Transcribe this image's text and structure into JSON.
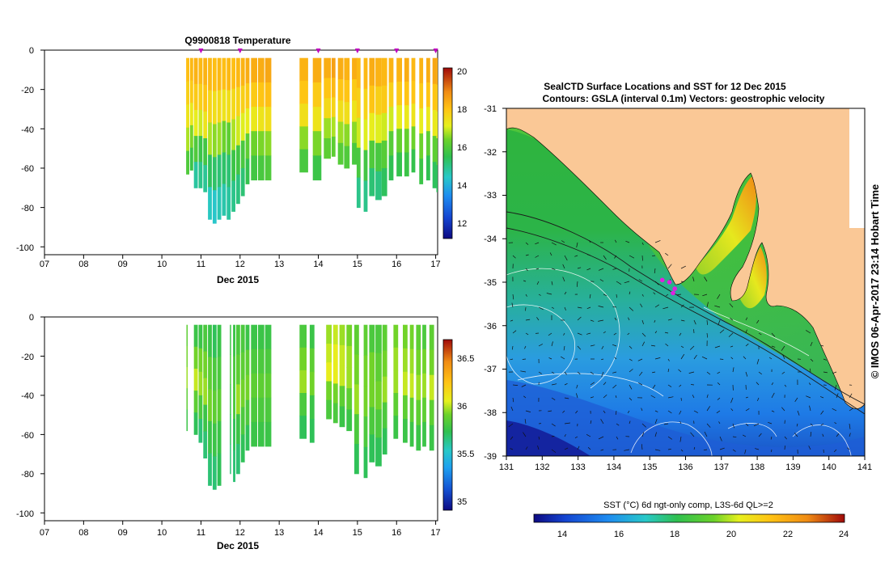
{
  "chart_data": [
    {
      "type": "heatmap",
      "title": "Q9900818  Temperature",
      "xlabel": "Dec 2015",
      "ylabel": "",
      "xlim": [
        7,
        17.05
      ],
      "ylim": [
        -104,
        0
      ],
      "x_ticks": [
        "07",
        "08",
        "09",
        "10",
        "11",
        "12",
        "13",
        "14",
        "15",
        "16",
        "17"
      ],
      "y_ticks": [
        "0",
        "-20",
        "-40",
        "-60",
        "-80",
        "-100"
      ],
      "profile_markers_day": [
        11.0,
        12.0,
        14.0,
        15.0,
        16.0,
        17.0
      ],
      "colorbar": {
        "min": 11,
        "max": 20,
        "ticks": [
          "12",
          "14",
          "16",
          "18",
          "20"
        ]
      },
      "profiles": [
        {
          "day": 10.62,
          "w": 0.08,
          "depth": 63,
          "vals": [
            17.9,
            17.6,
            17.2,
            16.6,
            15.8
          ]
        },
        {
          "day": 10.72,
          "w": 0.08,
          "depth": 61,
          "vals": [
            18.0,
            17.7,
            17.1,
            16.3,
            15.5
          ]
        },
        {
          "day": 10.82,
          "w": 0.1,
          "depth": 70,
          "vals": [
            18.1,
            17.7,
            17.0,
            15.8,
            14.6
          ]
        },
        {
          "day": 10.94,
          "w": 0.1,
          "depth": 70,
          "vals": [
            18.0,
            17.6,
            16.8,
            15.5,
            14.8
          ]
        },
        {
          "day": 11.06,
          "w": 0.1,
          "depth": 72,
          "vals": [
            18.1,
            17.8,
            17.2,
            15.6,
            14.7
          ]
        },
        {
          "day": 11.18,
          "w": 0.1,
          "depth": 86,
          "vals": [
            18.0,
            17.5,
            16.6,
            15.2,
            14.3
          ]
        },
        {
          "day": 11.3,
          "w": 0.1,
          "depth": 88,
          "vals": [
            17.9,
            17.3,
            16.4,
            15.1,
            14.2
          ]
        },
        {
          "day": 11.42,
          "w": 0.1,
          "depth": 86,
          "vals": [
            18.0,
            17.4,
            16.5,
            15.0,
            14.4
          ]
        },
        {
          "day": 11.54,
          "w": 0.1,
          "depth": 84,
          "vals": [
            17.9,
            17.2,
            16.2,
            15.1,
            14.5
          ]
        },
        {
          "day": 11.66,
          "w": 0.1,
          "depth": 86,
          "vals": [
            18.0,
            17.3,
            16.0,
            15.0,
            14.6
          ]
        },
        {
          "day": 11.78,
          "w": 0.1,
          "depth": 82,
          "vals": [
            17.9,
            17.4,
            16.6,
            15.5,
            14.8
          ]
        },
        {
          "day": 11.9,
          "w": 0.1,
          "depth": 78,
          "vals": [
            18.0,
            17.5,
            16.8,
            15.6,
            14.9
          ]
        },
        {
          "day": 12.02,
          "w": 0.1,
          "depth": 74,
          "vals": [
            18.1,
            17.6,
            16.9,
            15.7,
            15.0
          ]
        },
        {
          "day": 12.14,
          "w": 0.1,
          "depth": 68,
          "vals": [
            18.2,
            17.7,
            17.0,
            16.0,
            15.4
          ]
        },
        {
          "day": 12.28,
          "w": 0.16,
          "depth": 66,
          "vals": [
            18.2,
            17.7,
            17.1,
            16.2,
            15.6
          ]
        },
        {
          "day": 12.46,
          "w": 0.16,
          "depth": 66,
          "vals": [
            18.2,
            17.8,
            17.2,
            16.3,
            15.7
          ]
        },
        {
          "day": 12.64,
          "w": 0.16,
          "depth": 66,
          "vals": [
            18.3,
            17.9,
            17.3,
            16.4,
            15.8
          ]
        },
        {
          "day": 13.52,
          "w": 0.22,
          "depth": 62,
          "vals": [
            18.1,
            17.8,
            17.3,
            16.4,
            15.7
          ]
        },
        {
          "day": 13.86,
          "w": 0.22,
          "depth": 66,
          "vals": [
            18.2,
            17.7,
            17.2,
            16.3,
            15.5
          ]
        },
        {
          "day": 14.14,
          "w": 0.18,
          "depth": 55,
          "vals": [
            18.2,
            17.8,
            17.4,
            16.5,
            16.0
          ]
        },
        {
          "day": 14.34,
          "w": 0.1,
          "depth": 54,
          "vals": [
            18.4,
            18.0,
            17.5,
            16.6,
            16.0
          ]
        },
        {
          "day": 14.5,
          "w": 0.14,
          "depth": 58,
          "vals": [
            18.2,
            17.8,
            17.3,
            16.5,
            15.9
          ]
        },
        {
          "day": 14.66,
          "w": 0.14,
          "depth": 60,
          "vals": [
            18.1,
            17.8,
            17.3,
            16.4,
            15.8
          ]
        },
        {
          "day": 14.86,
          "w": 0.14,
          "depth": 58,
          "vals": [
            18.2,
            17.7,
            17.2,
            16.4,
            15.7
          ]
        },
        {
          "day": 14.98,
          "w": 0.1,
          "depth": 80,
          "vals": [
            18.0,
            17.6,
            16.8,
            15.7,
            14.8
          ]
        },
        {
          "day": 15.16,
          "w": 0.1,
          "depth": 82,
          "vals": [
            18.0,
            17.5,
            16.9,
            15.6,
            14.8
          ]
        },
        {
          "day": 15.3,
          "w": 0.14,
          "depth": 74,
          "vals": [
            18.2,
            17.8,
            17.0,
            15.8,
            15.0
          ]
        },
        {
          "day": 15.46,
          "w": 0.16,
          "depth": 76,
          "vals": [
            18.1,
            17.6,
            16.9,
            15.7,
            14.9
          ]
        },
        {
          "day": 15.62,
          "w": 0.14,
          "depth": 74,
          "vals": [
            18.0,
            17.7,
            16.8,
            15.9,
            15.2
          ]
        },
        {
          "day": 15.8,
          "w": 0.12,
          "depth": 66,
          "vals": [
            18.1,
            17.6,
            16.8,
            15.9,
            15.3
          ]
        },
        {
          "day": 16.0,
          "w": 0.14,
          "depth": 64,
          "vals": [
            18.1,
            17.7,
            17.0,
            16.1,
            15.4
          ]
        },
        {
          "day": 16.2,
          "w": 0.12,
          "depth": 64,
          "vals": [
            18.2,
            17.8,
            17.1,
            16.1,
            15.5
          ]
        },
        {
          "day": 16.38,
          "w": 0.1,
          "depth": 62,
          "vals": [
            18.0,
            17.8,
            17.2,
            16.2,
            15.4
          ]
        },
        {
          "day": 16.58,
          "w": 0.1,
          "depth": 68,
          "vals": [
            18.1,
            17.7,
            17.0,
            16.2,
            15.5
          ]
        },
        {
          "day": 16.76,
          "w": 0.1,
          "depth": 66,
          "vals": [
            18.2,
            17.8,
            17.1,
            16.0,
            15.3
          ]
        },
        {
          "day": 16.92,
          "w": 0.12,
          "depth": 70,
          "vals": [
            18.3,
            17.8,
            17.1,
            16.0,
            15.2
          ]
        },
        {
          "day": 17.02,
          "w": 0.03,
          "depth": 72,
          "vals": [
            18.2,
            17.7,
            17.0,
            16.0,
            15.2
          ]
        }
      ]
    },
    {
      "type": "heatmap",
      "title": "",
      "xlabel": "Dec 2015",
      "ylabel": "",
      "xlim": [
        7,
        17.05
      ],
      "ylim": [
        -104,
        0
      ],
      "x_ticks": [
        "07",
        "08",
        "09",
        "10",
        "11",
        "12",
        "13",
        "14",
        "15",
        "16",
        "17"
      ],
      "y_ticks": [
        "0",
        "-20",
        "-40",
        "-60",
        "-80",
        "-100"
      ],
      "colorbar": {
        "min": 34.9,
        "max": 36.7,
        "ticks": [
          "35",
          "35.5",
          "36",
          "36.5"
        ]
      },
      "profiles": [
        {
          "day": 10.63,
          "w": 0.03,
          "depth": 58,
          "vals": [
            35.9,
            35.95,
            36.0,
            35.9,
            35.8
          ]
        },
        {
          "day": 10.82,
          "w": 0.1,
          "depth": 60,
          "vals": [
            35.8,
            35.95,
            36.05,
            35.9,
            35.75
          ]
        },
        {
          "day": 10.94,
          "w": 0.1,
          "depth": 64,
          "vals": [
            35.8,
            35.95,
            36.0,
            35.85,
            35.7
          ]
        },
        {
          "day": 11.06,
          "w": 0.1,
          "depth": 72,
          "vals": [
            35.85,
            35.95,
            36.0,
            35.8,
            35.7
          ]
        },
        {
          "day": 11.18,
          "w": 0.1,
          "depth": 86,
          "vals": [
            35.8,
            35.9,
            35.95,
            35.8,
            35.7
          ]
        },
        {
          "day": 11.3,
          "w": 0.1,
          "depth": 88,
          "vals": [
            35.75,
            35.85,
            35.9,
            35.8,
            35.7
          ]
        },
        {
          "day": 11.42,
          "w": 0.1,
          "depth": 86,
          "vals": [
            35.8,
            35.85,
            35.9,
            35.8,
            35.75
          ]
        },
        {
          "day": 11.74,
          "w": 0.03,
          "depth": 80,
          "vals": [
            35.8,
            35.85,
            35.8,
            35.75,
            35.7
          ]
        },
        {
          "day": 11.82,
          "w": 0.06,
          "depth": 84,
          "vals": [
            35.8,
            35.85,
            35.85,
            35.75,
            35.7
          ]
        },
        {
          "day": 11.9,
          "w": 0.1,
          "depth": 80,
          "vals": [
            35.85,
            35.9,
            36.0,
            35.8,
            35.7
          ]
        },
        {
          "day": 12.02,
          "w": 0.1,
          "depth": 74,
          "vals": [
            35.85,
            35.9,
            35.95,
            35.85,
            35.75
          ]
        },
        {
          "day": 12.14,
          "w": 0.1,
          "depth": 68,
          "vals": [
            35.8,
            35.9,
            35.95,
            35.85,
            35.75
          ]
        },
        {
          "day": 12.28,
          "w": 0.16,
          "depth": 66,
          "vals": [
            35.8,
            35.85,
            35.9,
            35.85,
            35.8
          ]
        },
        {
          "day": 12.46,
          "w": 0.16,
          "depth": 66,
          "vals": [
            35.8,
            35.85,
            35.9,
            35.85,
            35.8
          ]
        },
        {
          "day": 12.64,
          "w": 0.16,
          "depth": 66,
          "vals": [
            35.8,
            35.85,
            35.9,
            35.85,
            35.8
          ]
        },
        {
          "day": 13.52,
          "w": 0.18,
          "depth": 62,
          "vals": [
            35.85,
            35.95,
            36.0,
            35.85,
            35.75
          ]
        },
        {
          "day": 13.78,
          "w": 0.12,
          "depth": 64,
          "vals": [
            35.8,
            35.9,
            35.95,
            35.8,
            35.75
          ]
        },
        {
          "day": 14.2,
          "w": 0.14,
          "depth": 52,
          "vals": [
            36.0,
            36.05,
            36.1,
            35.95,
            35.85
          ]
        },
        {
          "day": 14.38,
          "w": 0.12,
          "depth": 54,
          "vals": [
            36.05,
            36.1,
            36.1,
            35.95,
            35.85
          ]
        },
        {
          "day": 14.54,
          "w": 0.14,
          "depth": 56,
          "vals": [
            36.0,
            36.05,
            36.05,
            35.9,
            35.8
          ]
        },
        {
          "day": 14.72,
          "w": 0.14,
          "depth": 58,
          "vals": [
            35.95,
            36.0,
            36.0,
            35.9,
            35.8
          ]
        },
        {
          "day": 14.92,
          "w": 0.12,
          "depth": 80,
          "vals": [
            35.9,
            35.95,
            36.0,
            35.85,
            35.75
          ]
        },
        {
          "day": 15.16,
          "w": 0.1,
          "depth": 82,
          "vals": [
            35.9,
            35.95,
            35.95,
            35.85,
            35.75
          ]
        },
        {
          "day": 15.3,
          "w": 0.14,
          "depth": 74,
          "vals": [
            35.85,
            35.95,
            35.95,
            35.85,
            35.75
          ]
        },
        {
          "day": 15.46,
          "w": 0.16,
          "depth": 76,
          "vals": [
            35.85,
            35.9,
            35.95,
            35.85,
            35.75
          ]
        },
        {
          "day": 15.64,
          "w": 0.12,
          "depth": 70,
          "vals": [
            35.9,
            35.95,
            36.0,
            35.85,
            35.75
          ]
        },
        {
          "day": 15.92,
          "w": 0.12,
          "depth": 62,
          "vals": [
            35.95,
            36.0,
            36.0,
            35.9,
            35.8
          ]
        },
        {
          "day": 16.16,
          "w": 0.12,
          "depth": 64,
          "vals": [
            35.95,
            36.0,
            36.05,
            35.9,
            35.8
          ]
        },
        {
          "day": 16.34,
          "w": 0.1,
          "depth": 66,
          "vals": [
            35.95,
            36.0,
            36.05,
            35.9,
            35.8
          ]
        },
        {
          "day": 16.5,
          "w": 0.12,
          "depth": 68,
          "vals": [
            35.9,
            35.95,
            36.0,
            35.9,
            35.8
          ]
        },
        {
          "day": 16.66,
          "w": 0.1,
          "depth": 66,
          "vals": [
            35.85,
            35.95,
            36.0,
            35.9,
            35.8
          ]
        },
        {
          "day": 16.84,
          "w": 0.12,
          "depth": 68,
          "vals": [
            35.9,
            35.95,
            36.05,
            35.9,
            35.8
          ]
        }
      ]
    },
    {
      "type": "heatmap",
      "title": "SealCTD Surface Locations and SST for 12 Dec 2015",
      "subtitle": "Contours: GSLA (interval 0.1m) Vectors: geostrophic velocity",
      "xlabel": "",
      "ylabel": "",
      "xlim": [
        131,
        141
      ],
      "ylim": [
        -39,
        -31
      ],
      "x_ticks": [
        "131",
        "132",
        "133",
        "134",
        "135",
        "136",
        "137",
        "138",
        "139",
        "140",
        "141"
      ],
      "y_ticks": [
        "-31",
        "-32",
        "-33",
        "-34",
        "-35",
        "-36",
        "-37",
        "-38",
        "-39"
      ],
      "colorbar": {
        "label": "SST (°C) 6d ngt-only comp, L3S-6d QL>=2",
        "min": 13,
        "max": 24,
        "ticks": [
          "14",
          "16",
          "18",
          "20",
          "22",
          "24"
        ]
      },
      "seal_locations": [
        [
          135.35,
          -34.95
        ],
        [
          135.55,
          -35.0
        ],
        [
          135.7,
          -35.15
        ],
        [
          135.65,
          -35.25
        ]
      ],
      "land_color": "#fac896"
    }
  ],
  "credit": "©  IMOS 06-Apr-2017 23:14 Hobart Time"
}
